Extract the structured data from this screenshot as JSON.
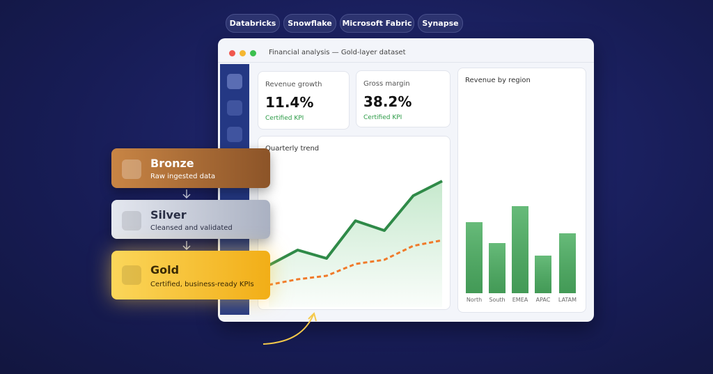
{
  "tags": [
    "Databricks",
    "Snowflake",
    "Microsoft Fabric",
    "Synapse"
  ],
  "window": {
    "title": "Financial analysis — Gold-layer dataset"
  },
  "kpis": [
    {
      "label": "Revenue growth",
      "value": "11.4%",
      "note": "Certified KPI"
    },
    {
      "label": "Gross margin",
      "value": "38.2%",
      "note": "Certified KPI"
    }
  ],
  "trend_chart": {
    "type": "line",
    "title": "Quarterly trend",
    "series": [
      {
        "color": "#2f8a48",
        "values": [
          60,
          82,
          70,
          124,
          110,
          160,
          181
        ]
      },
      {
        "color": "#f07a2a",
        "values": [
          32,
          40,
          45,
          62,
          68,
          88,
          96
        ]
      }
    ]
  },
  "region_chart": {
    "type": "bar",
    "title": "Revenue by region",
    "categories": [
      "North",
      "South",
      "EMEA",
      "APAC",
      "LATAM"
    ],
    "values": [
      102,
      72,
      125,
      54,
      86
    ],
    "color": "#4caf62"
  },
  "layers": [
    {
      "name": "Bronze",
      "description": "Raw ingested data"
    },
    {
      "name": "Silver",
      "description": "Cleansed and validated"
    },
    {
      "name": "Gold",
      "description": "Certified, business-ready KPIs"
    }
  ]
}
